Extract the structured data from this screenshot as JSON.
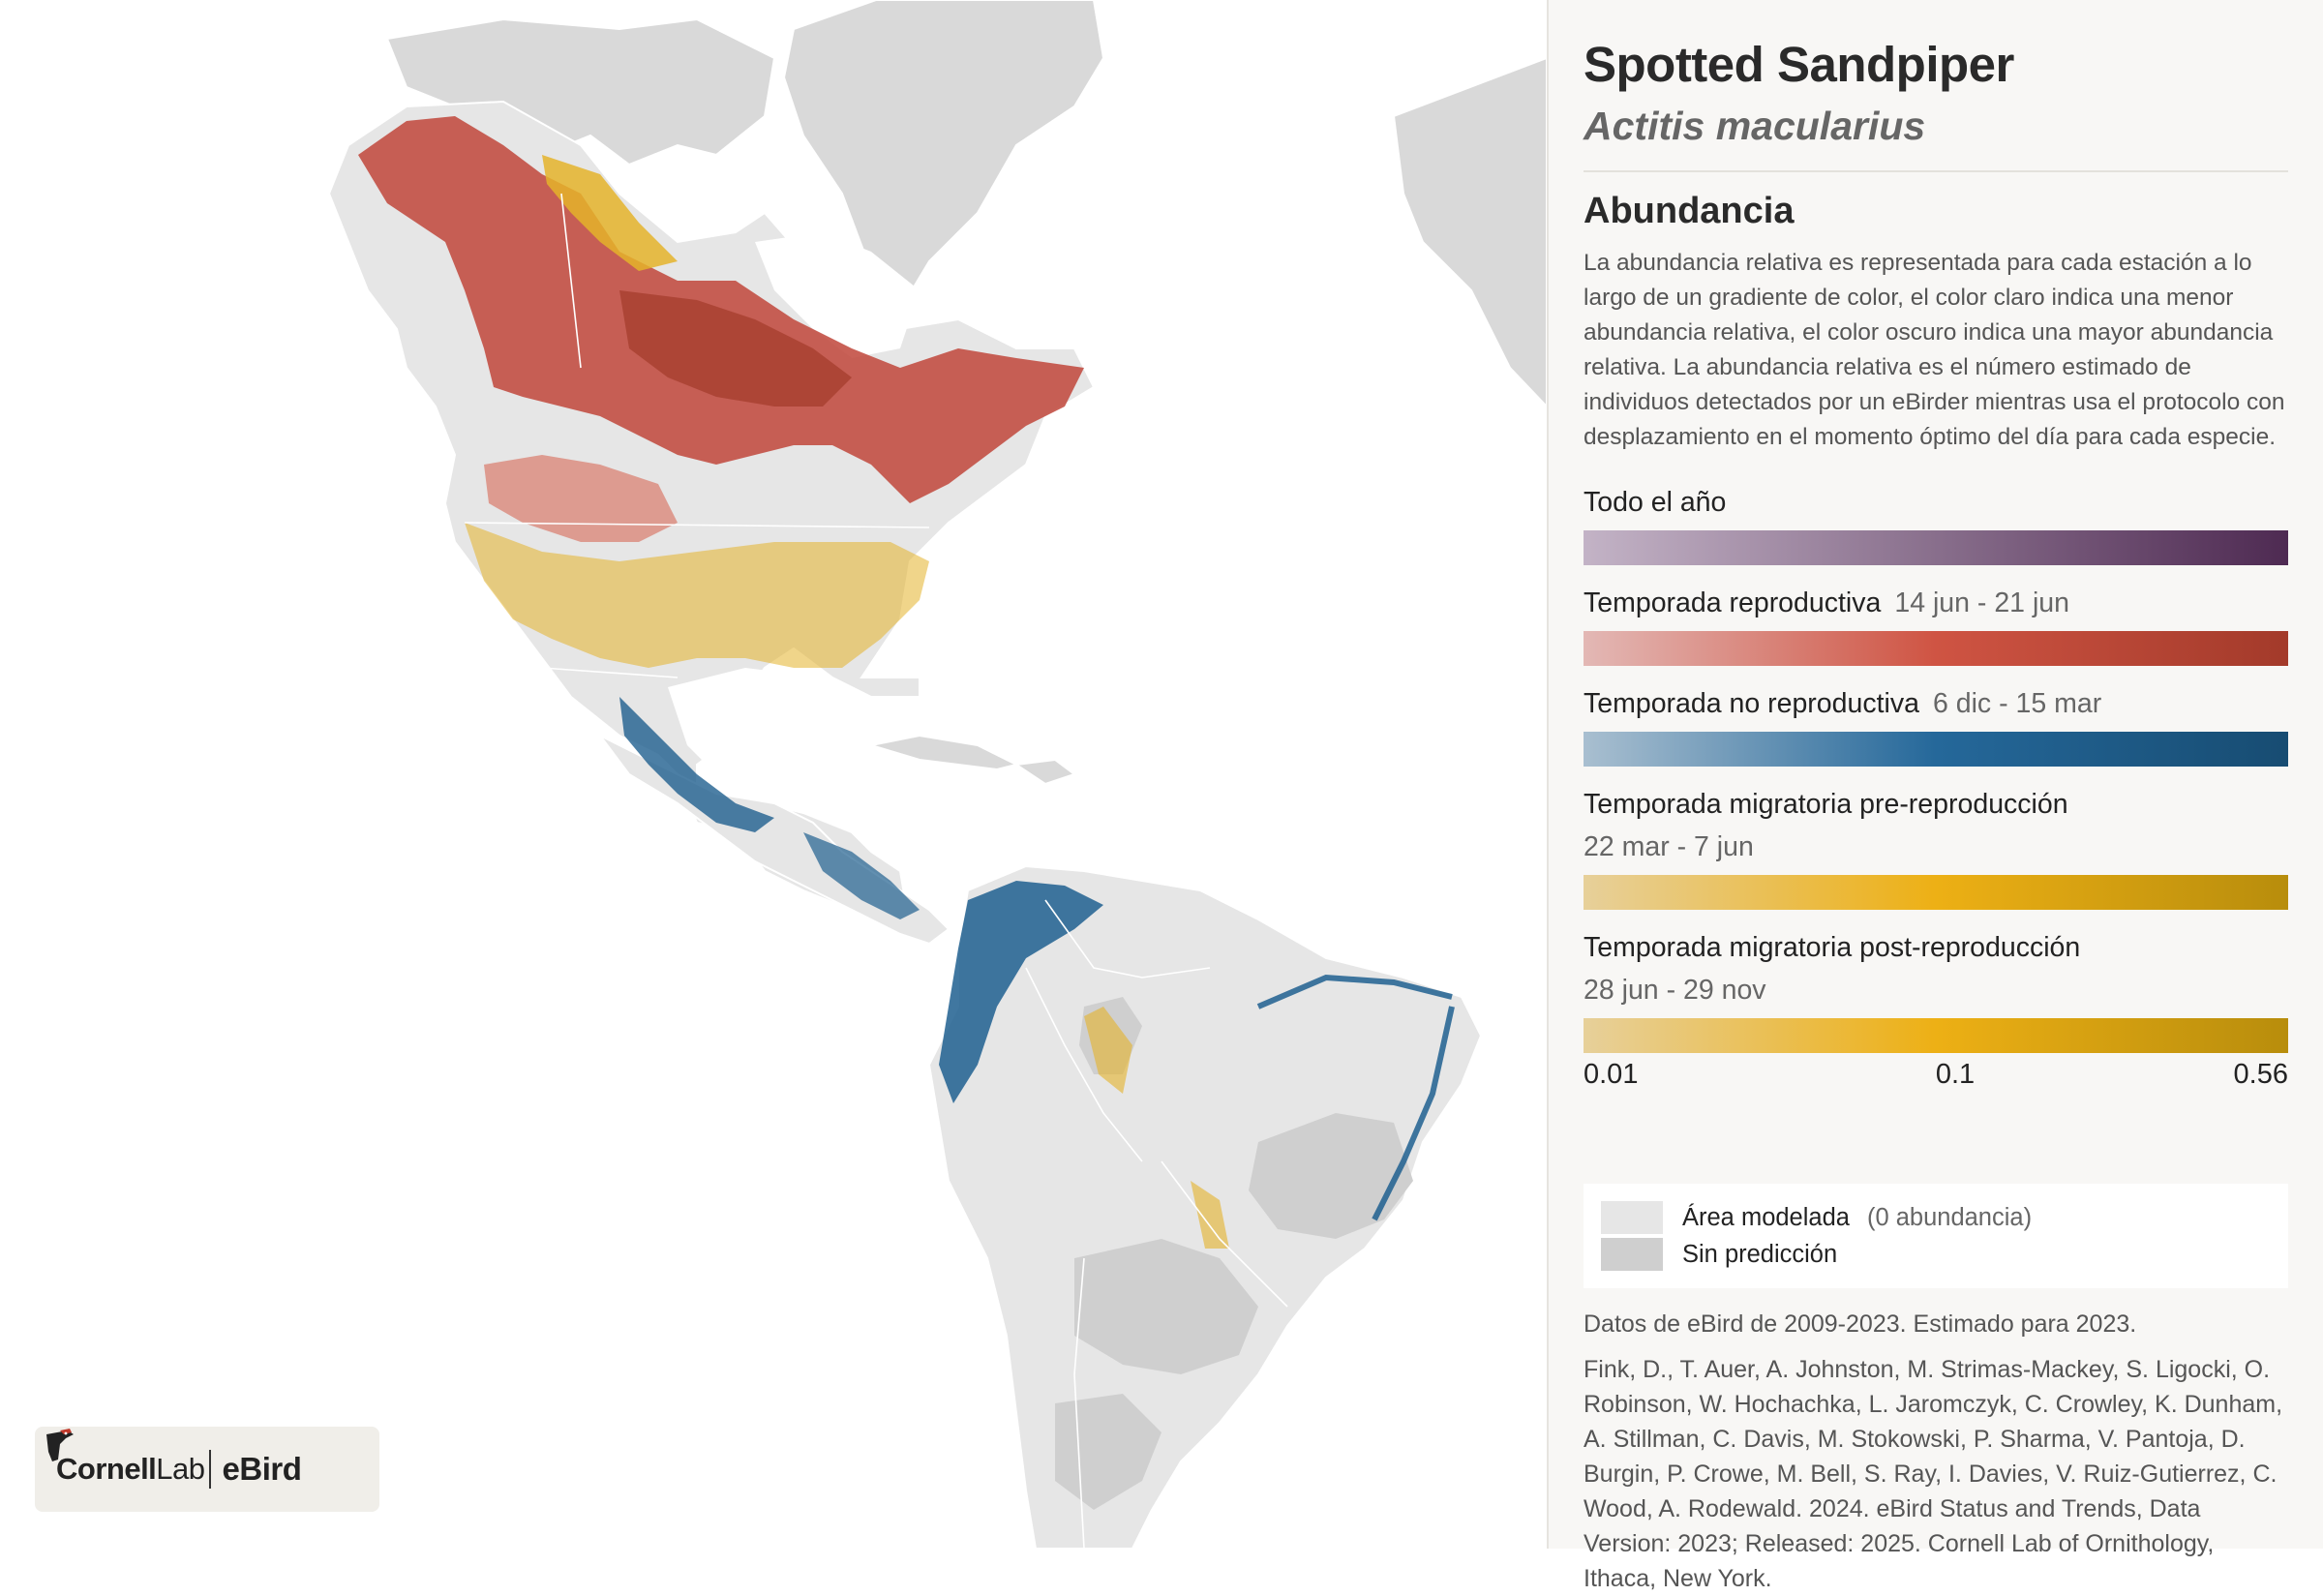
{
  "species": {
    "common_name": "Spotted Sandpiper",
    "scientific_name": "Actitis macularius"
  },
  "abundance": {
    "title": "Abundancia",
    "description": "La abundancia relativa es representada para cada estación a lo largo de un gradiente de color, el color claro indica una menor abundancia relativa, el color oscuro indica una mayor abundancia relativa. La abundancia relativa es el número estimado de individuos detectados por un eBirder mientras usa el protocolo con desplazamiento en el momento óptimo del día para cada especie."
  },
  "seasons": [
    {
      "label": "Todo el año",
      "dates": "",
      "color_light": "#c3b3c6",
      "color_dark": "#4e2a52"
    },
    {
      "label": "Temporada reproductiva",
      "dates": "14 jun - 21 jun",
      "color_light": "#e3b8b5",
      "color_mid": "#cf5443",
      "color_dark": "#a33a2a"
    },
    {
      "label": "Temporada no reproductiva",
      "dates": "6 dic - 15 mar",
      "color_light": "#a9bfd0",
      "color_mid": "#25689a",
      "color_dark": "#174c72"
    },
    {
      "label": "Temporada migratoria pre-reproducción",
      "dates": "22 mar - 7 jun",
      "color_light": "#e7d09a",
      "color_mid": "#edb015",
      "color_dark": "#b88d0c"
    },
    {
      "label": "Temporada migratoria post-reproducción",
      "dates": "28 jun - 29 nov",
      "color_light": "#e7d09a",
      "color_mid": "#edb015",
      "color_dark": "#b88d0c"
    }
  ],
  "scale_ticks": [
    "0.01",
    "0.1",
    "0.56"
  ],
  "legend": {
    "modeled_label": "Área modelada",
    "modeled_note": "(0 abundancia)",
    "modeled_color": "#e6e6e6",
    "nopred_label": "Sin predicción",
    "nopred_color": "#cfcfcf"
  },
  "source_text": "Datos de eBird de 2009-2023. Estimado para 2023.",
  "citation": "Fink, D., T. Auer, A. Johnston, M. Strimas-Mackey, S. Ligocki, O. Robinson, W. Hochachka, L. Jaromczyk, C. Crowley, K. Dunham, A. Stillman, C. Davis, M. Stokowski, P. Sharma, V. Pantoja, D. Burgin, P. Crowe, M. Bell, S. Ray, I. Davies, V. Ruiz-Gutierrez, C. Wood, A. Rodewald. 2024. eBird Status and Trends, Data Version: 2023; Released: 2025. Cornell Lab of Ornithology, Ithaca, New York.",
  "logo": {
    "cornell_bold": "Cornell",
    "cornell_light": "Lab",
    "ebird": "eBird"
  },
  "map_colors": {
    "land": "#d9d9d9",
    "modeled": "#e6e6e6",
    "nopred": "#cfcfcf",
    "breeding": "#c0453a",
    "nonbreeding": "#1f5f8f",
    "migration": "#e4b32a"
  }
}
